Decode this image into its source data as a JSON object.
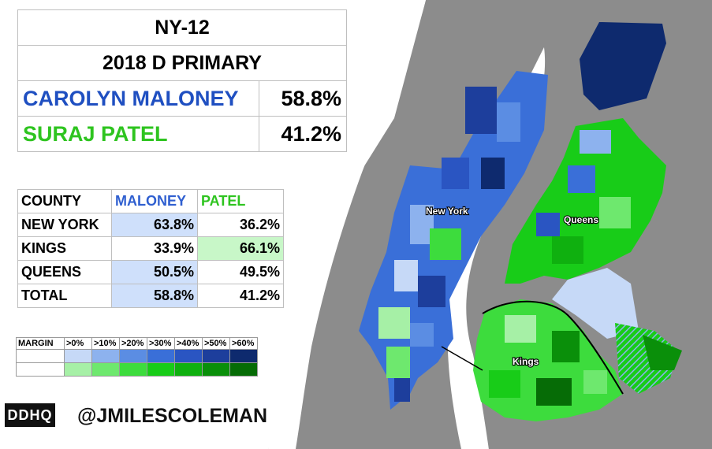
{
  "title": "NY-12",
  "subtitle": "2018 D PRIMARY",
  "candidates": [
    {
      "name": "CAROLYN MALONEY",
      "pct": "58.8%",
      "color": "#1f4fc1"
    },
    {
      "name": "SURAJ PATEL",
      "pct": "41.2%",
      "color": "#2ec41f"
    }
  ],
  "county_table": {
    "headers": [
      "COUNTY",
      "MALONEY",
      "PATEL"
    ],
    "rows": [
      {
        "county": "NEW YORK",
        "maloney": "63.8%",
        "patel": "36.2%",
        "winner": "maloney"
      },
      {
        "county": "KINGS",
        "maloney": "33.9%",
        "patel": "66.1%",
        "winner": "patel"
      },
      {
        "county": "QUEENS",
        "maloney": "50.5%",
        "patel": "49.5%",
        "winner": "maloney"
      },
      {
        "county": "TOTAL",
        "maloney": "58.8%",
        "patel": "41.2%",
        "winner": "maloney"
      }
    ]
  },
  "legend": {
    "label": "MARGIN",
    "bins": [
      ">0%",
      ">10%",
      ">20%",
      ">30%",
      ">40%",
      ">50%",
      ">60%"
    ],
    "blue_scale": [
      "#c6d9f7",
      "#8db2ee",
      "#5b8de3",
      "#3a6fd8",
      "#2a55c2",
      "#1d3e9c",
      "#0e2a6e"
    ],
    "green_scale": [
      "#a6f0a6",
      "#6ee86e",
      "#3ddc3d",
      "#18cc18",
      "#0fb00f",
      "#0a8f0a",
      "#066c06"
    ]
  },
  "map_labels": [
    "New York",
    "Queens",
    "Kings"
  ],
  "logo": "DDHQ",
  "credit": "@JMILESCOLEMAN"
}
